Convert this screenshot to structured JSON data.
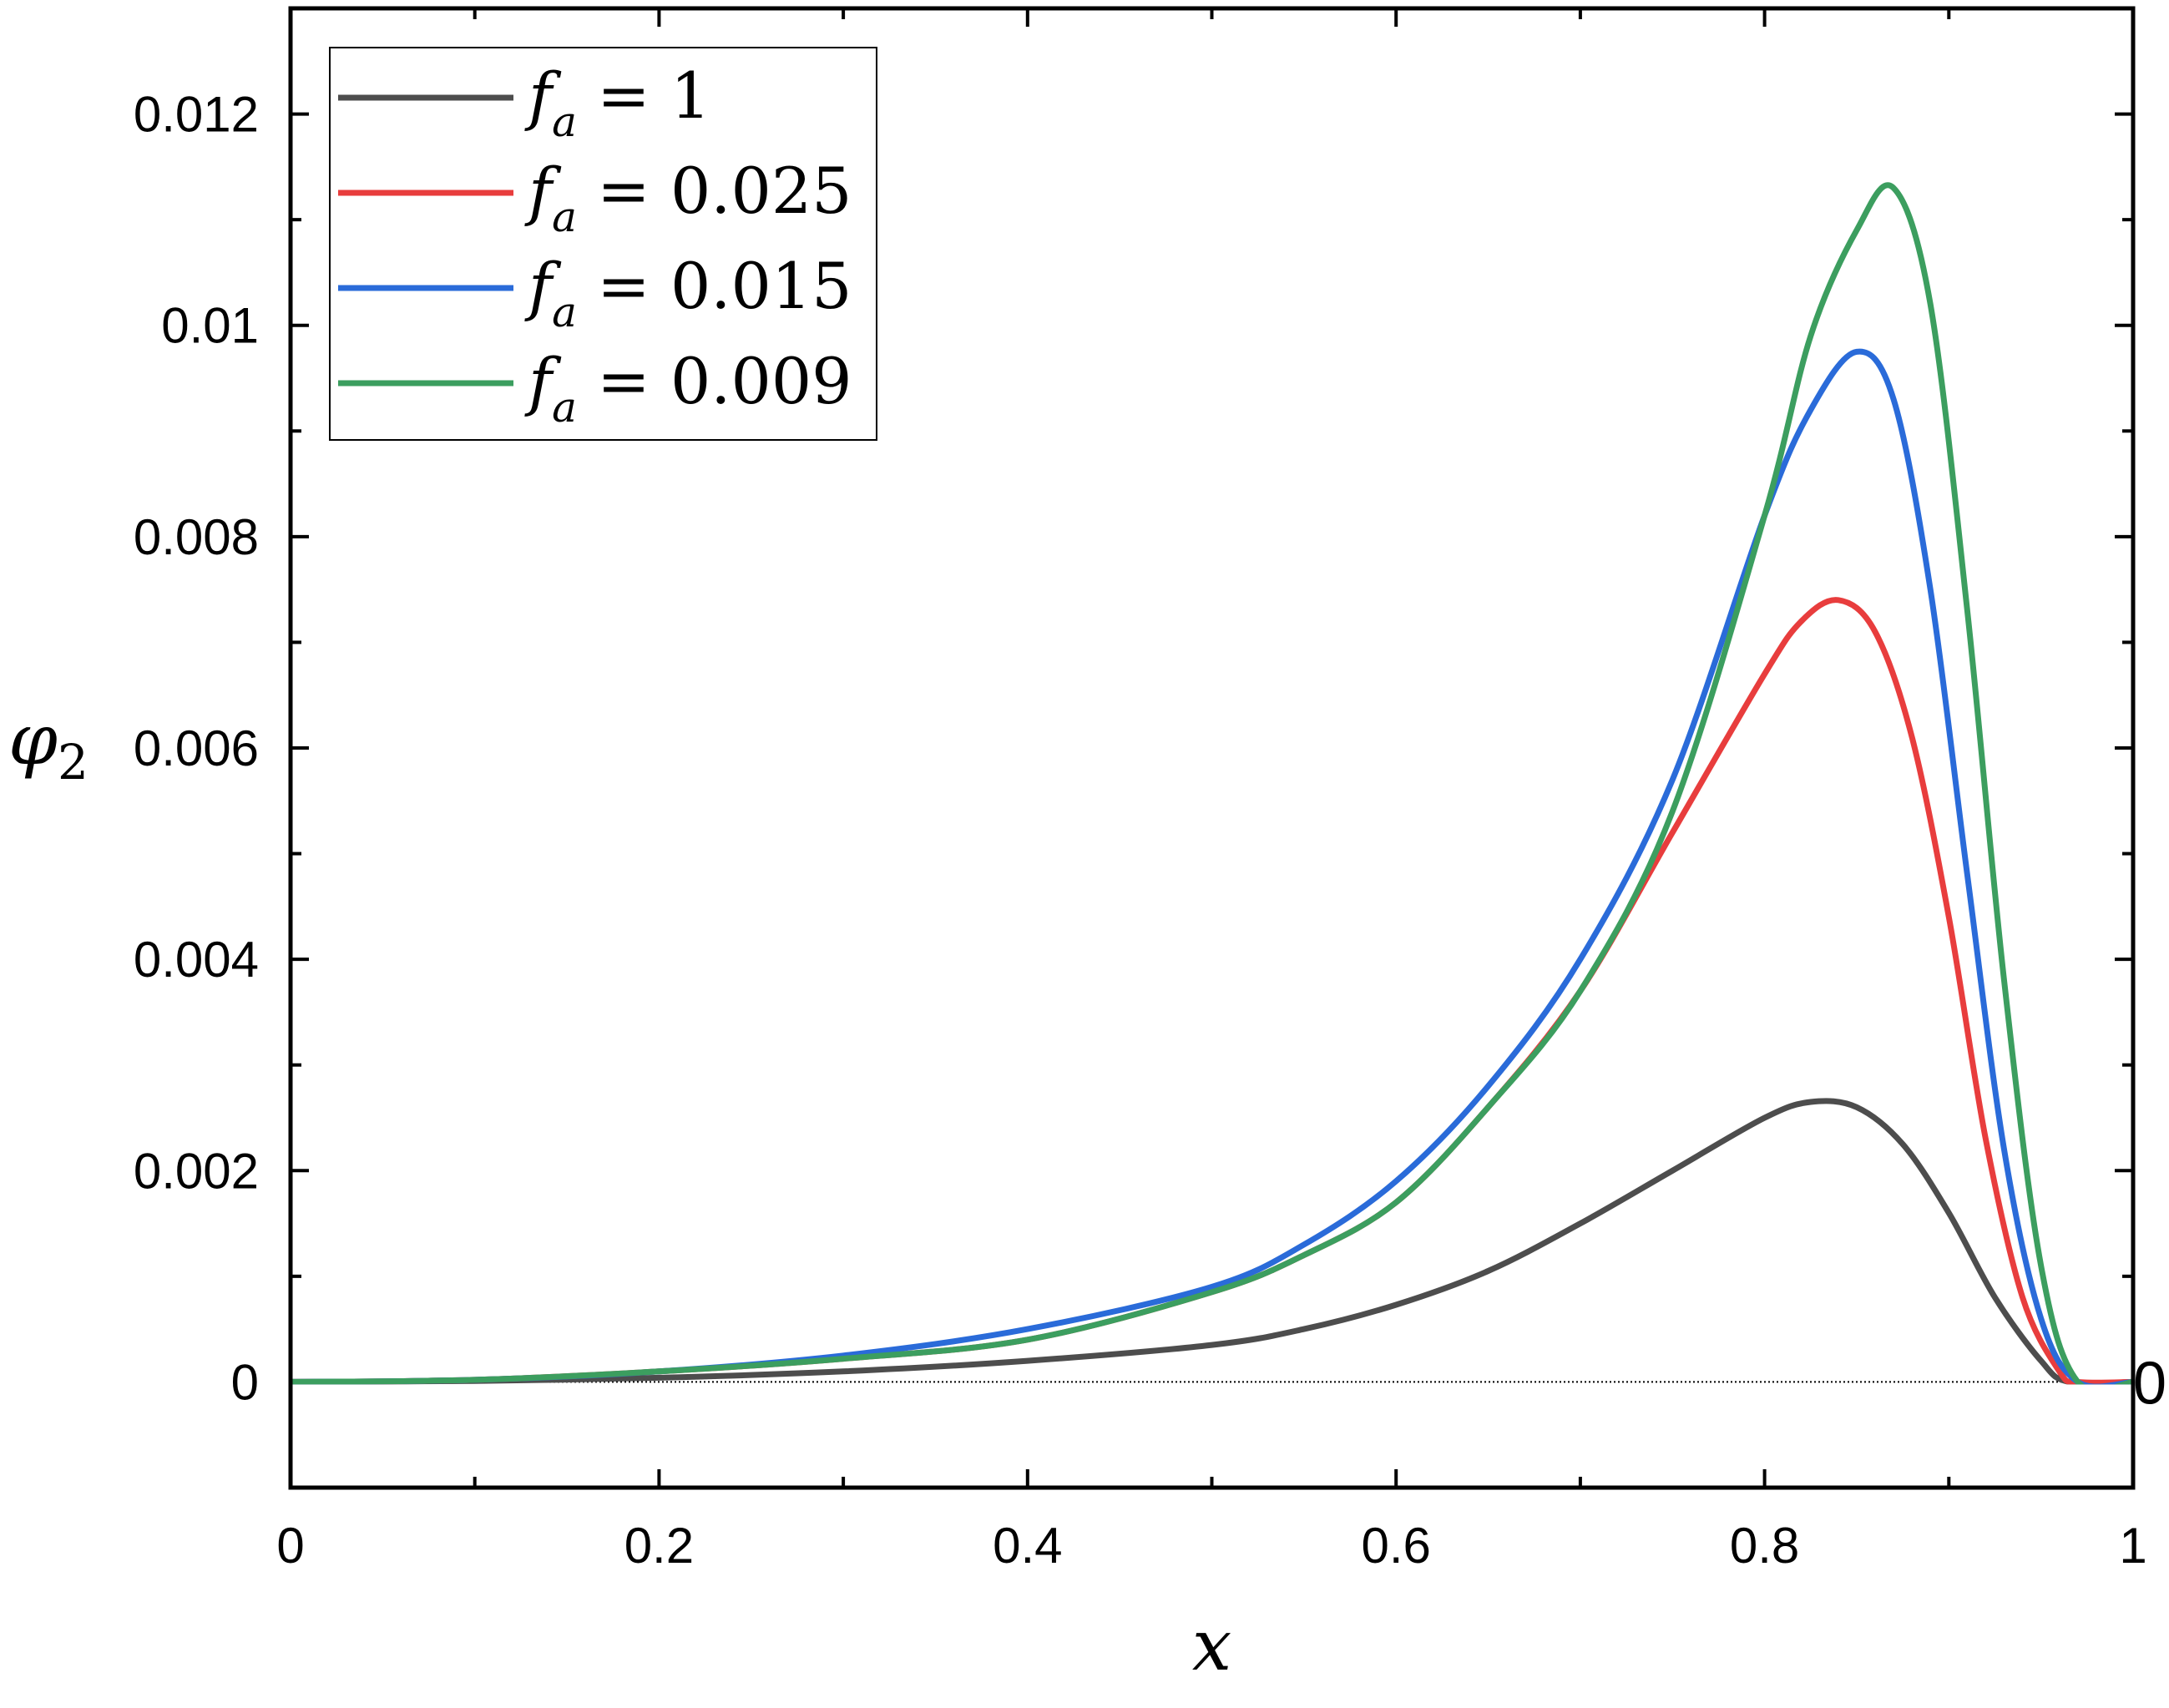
{
  "chart_data": {
    "type": "line",
    "title": "",
    "xlabel": "x",
    "ylabel": {
      "symbol": "φ",
      "subscript": "2"
    },
    "xlim": [
      0,
      1
    ],
    "ylim": [
      -0.001,
      0.013
    ],
    "x_ticks": [
      0,
      0.2,
      0.4,
      0.6,
      0.8,
      1
    ],
    "x_tick_labels": [
      "0",
      "0.2",
      "0.4",
      "0.6",
      "0.8",
      "1"
    ],
    "y_ticks": [
      0,
      0.002,
      0.004,
      0.006,
      0.008,
      0.01,
      0.012
    ],
    "y_tick_labels": [
      "0",
      "0.002",
      "0.004",
      "0.006",
      "0.008",
      "0.01",
      "0.012"
    ],
    "right_axis_label": "0",
    "legend_position": "top-left",
    "grid": false,
    "reference_line": {
      "y": 0,
      "style": "dotted"
    },
    "series": [
      {
        "name": "f_a = 1",
        "legend": {
          "var": "f",
          "sub": "a",
          "rest": " = 1"
        },
        "color": "#4d4d4d",
        "x": [
          0,
          0.1,
          0.2,
          0.3,
          0.4,
          0.5,
          0.55,
          0.6,
          0.65,
          0.7,
          0.75,
          0.8,
          0.825,
          0.85,
          0.875,
          0.9,
          0.925,
          0.95,
          0.965,
          1.0
        ],
        "y": [
          0,
          1e-05,
          4e-05,
          0.0001,
          0.0002,
          0.00035,
          0.0005,
          0.00073,
          0.00105,
          0.0015,
          0.002,
          0.0025,
          0.00265,
          0.0026,
          0.00225,
          0.0016,
          0.0008,
          0.0002,
          0,
          0
        ]
      },
      {
        "name": "f_a = 0.025",
        "legend": {
          "var": "f",
          "sub": "a",
          "rest": " = 0.025"
        },
        "color": "#e83d3d",
        "x": [
          0,
          0.1,
          0.2,
          0.3,
          0.4,
          0.5,
          0.55,
          0.6,
          0.65,
          0.7,
          0.75,
          0.8,
          0.82,
          0.84,
          0.86,
          0.88,
          0.9,
          0.92,
          0.94,
          0.96,
          0.97,
          1.0
        ],
        "y": [
          0,
          2e-05,
          0.0001,
          0.00022,
          0.0004,
          0.00085,
          0.0012,
          0.0017,
          0.0026,
          0.0037,
          0.0052,
          0.0067,
          0.0072,
          0.0074,
          0.0071,
          0.0061,
          0.0044,
          0.0023,
          0.0008,
          0.0001,
          0,
          0
        ]
      },
      {
        "name": "f_a = 0.015",
        "legend": {
          "var": "f",
          "sub": "a",
          "rest": " = 0.015"
        },
        "color": "#2a6bd9",
        "x": [
          0,
          0.1,
          0.2,
          0.3,
          0.4,
          0.5,
          0.55,
          0.6,
          0.65,
          0.7,
          0.75,
          0.8,
          0.825,
          0.85,
          0.87,
          0.89,
          0.91,
          0.93,
          0.95,
          0.97,
          1.0
        ],
        "y": [
          0,
          2e-05,
          0.0001,
          0.00025,
          0.0005,
          0.0009,
          0.0013,
          0.0019,
          0.0028,
          0.004,
          0.0057,
          0.0082,
          0.0092,
          0.00975,
          0.0093,
          0.0075,
          0.0048,
          0.0022,
          0.0006,
          0,
          0
        ]
      },
      {
        "name": "f_a = 0.009",
        "legend": {
          "var": "f",
          "sub": "a",
          "rest": " = 0.009"
        },
        "color": "#3c9e5f",
        "x": [
          0,
          0.1,
          0.2,
          0.3,
          0.4,
          0.5,
          0.55,
          0.6,
          0.65,
          0.7,
          0.75,
          0.8,
          0.825,
          0.85,
          0.87,
          0.89,
          0.91,
          0.93,
          0.95,
          0.97,
          1.0
        ],
        "y": [
          0,
          2e-05,
          0.0001,
          0.00022,
          0.0004,
          0.00085,
          0.0012,
          0.0017,
          0.0026,
          0.0037,
          0.0054,
          0.0082,
          0.0099,
          0.0109,
          0.0113,
          0.0102,
          0.0073,
          0.0038,
          0.0011,
          0,
          0
        ]
      }
    ]
  }
}
